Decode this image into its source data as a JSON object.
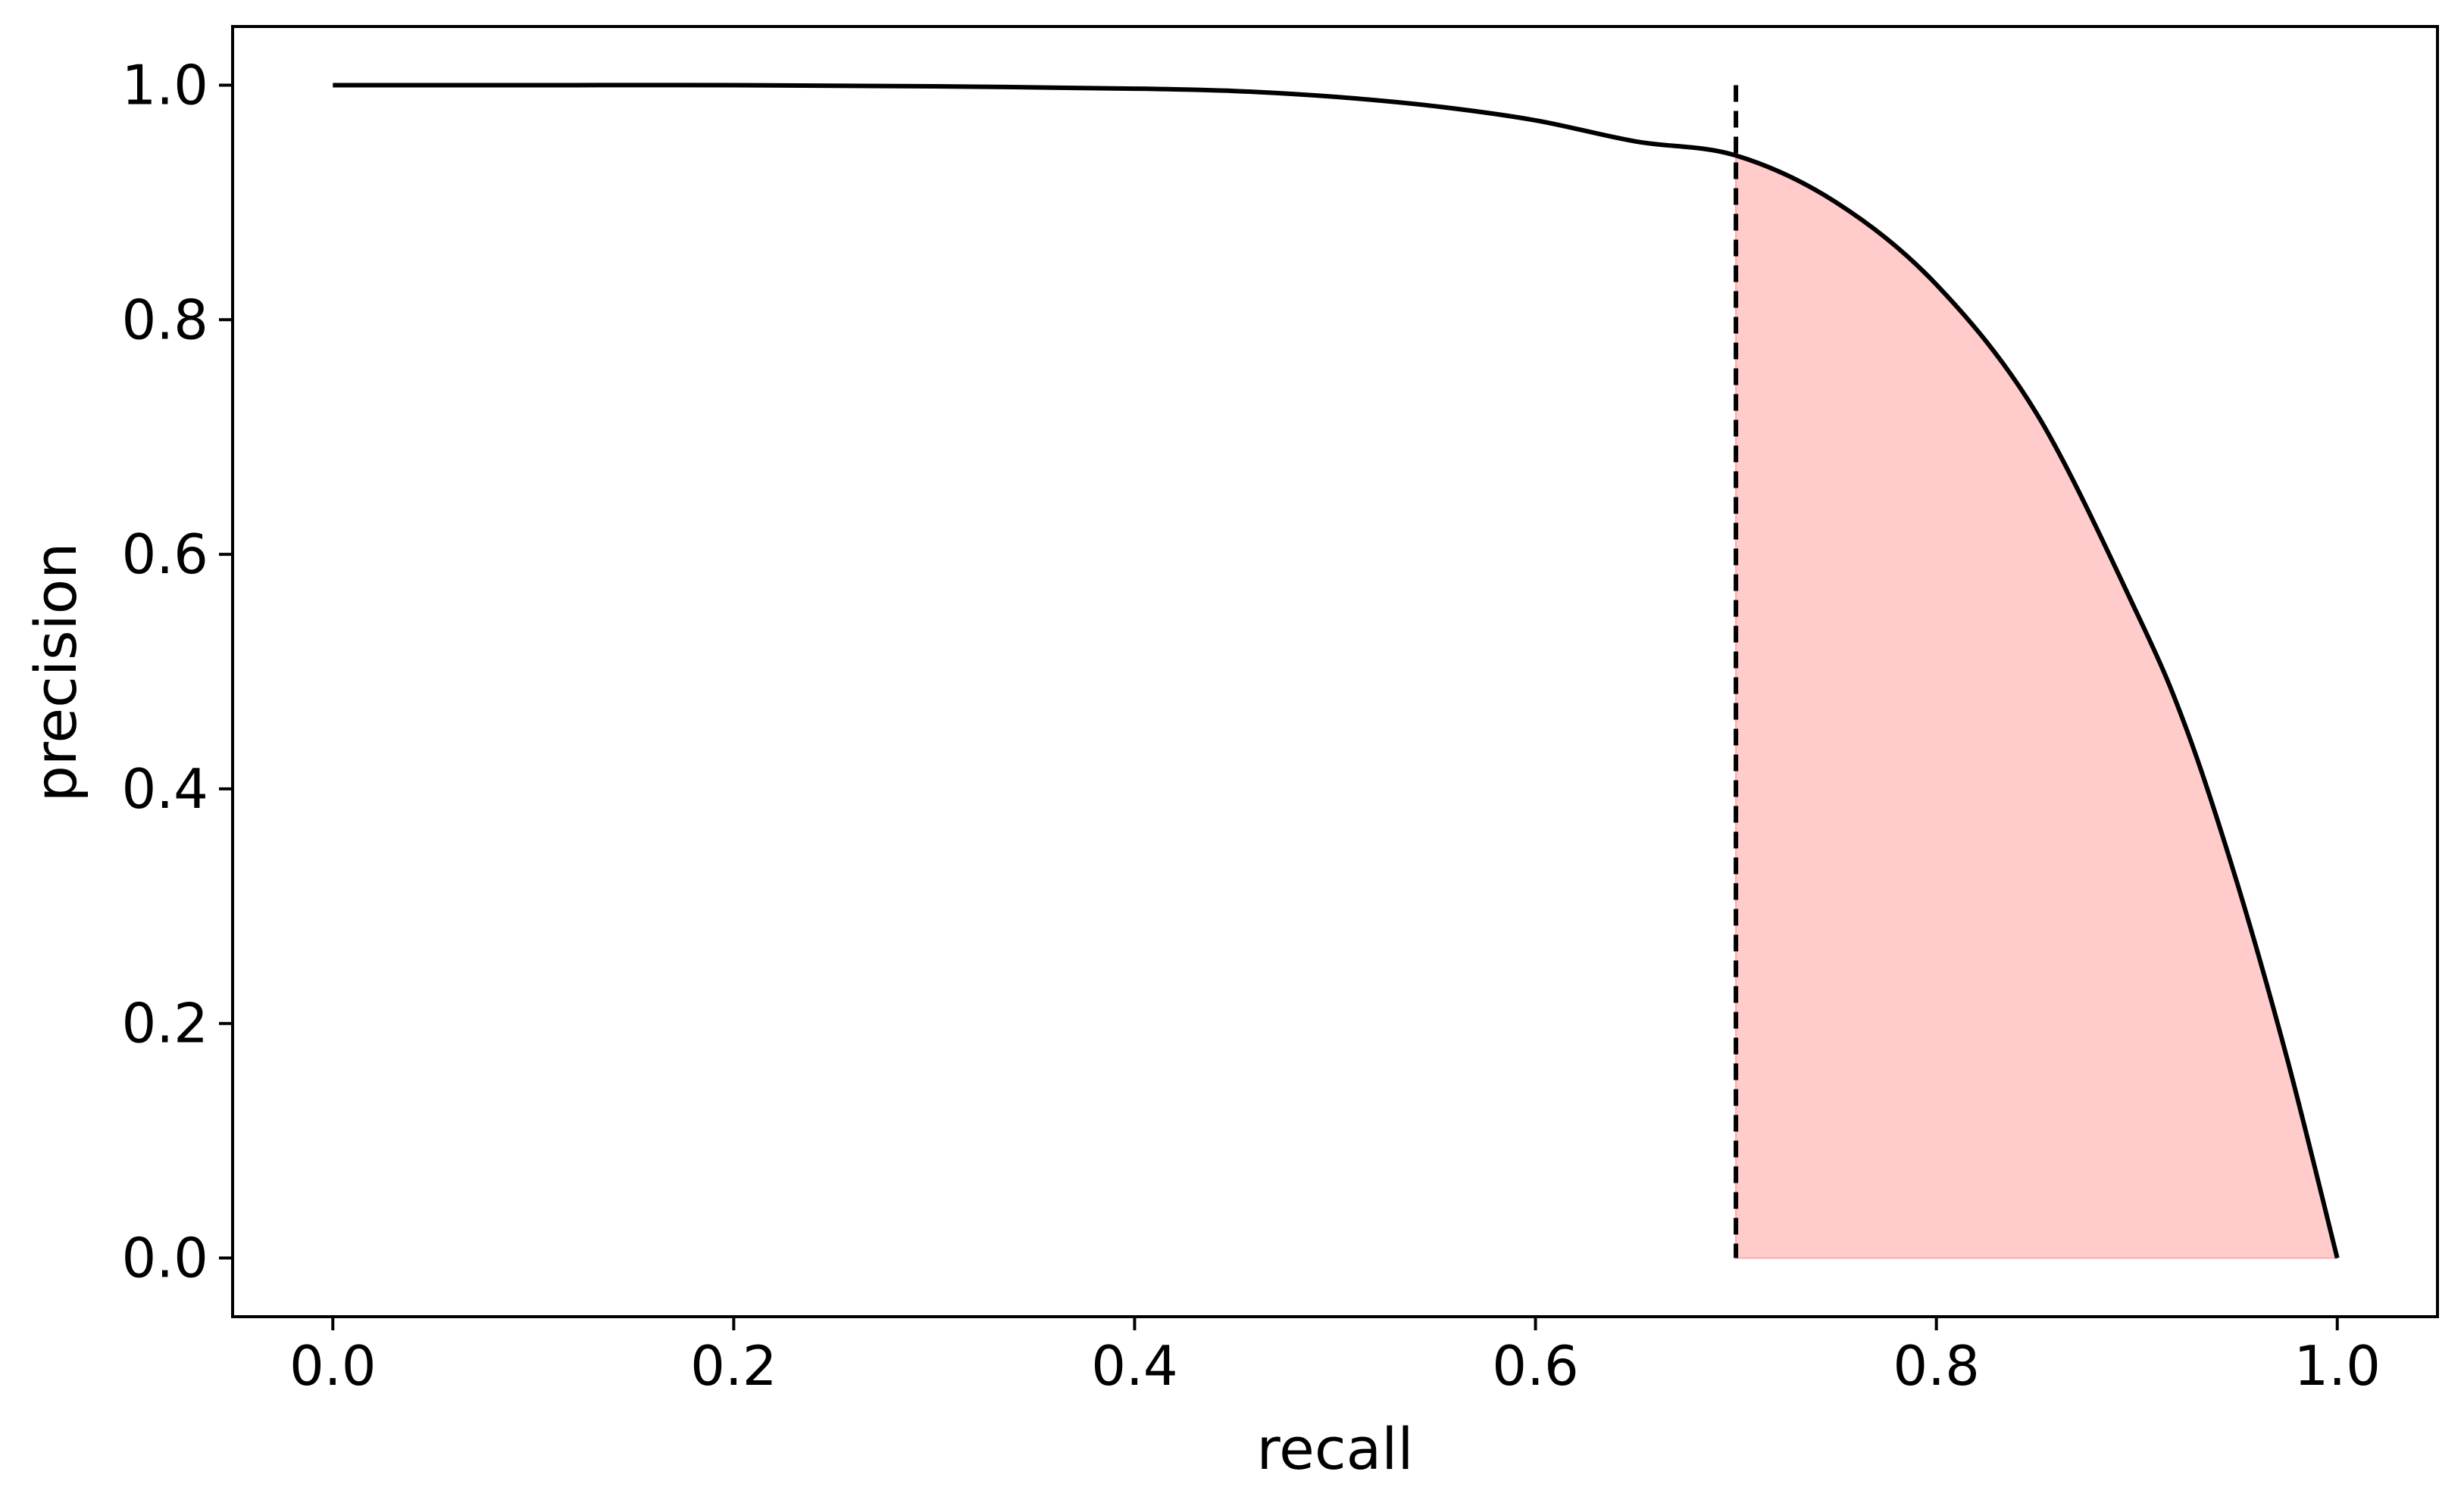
{
  "chart_data": {
    "type": "line",
    "title": "",
    "xlabel": "recall",
    "ylabel": "precision",
    "xlim": [
      -0.05,
      1.05
    ],
    "ylim": [
      -0.05,
      1.05
    ],
    "grid": false,
    "legend": "none",
    "xticks": [
      0.0,
      0.2,
      0.4,
      0.6,
      0.8,
      1.0
    ],
    "yticks": [
      0.0,
      0.2,
      0.4,
      0.6,
      0.8,
      1.0
    ],
    "xtick_labels": [
      "0.0",
      "0.2",
      "0.4",
      "0.6",
      "0.8",
      "1.0"
    ],
    "ytick_labels": [
      "0.0",
      "0.2",
      "0.4",
      "0.6",
      "0.8",
      "1.0"
    ],
    "series": [
      {
        "line_color": "#000000",
        "x": [
          0.0,
          0.1,
          0.2,
          0.3,
          0.4,
          0.45,
          0.5,
          0.55,
          0.6,
          0.65,
          0.7,
          0.75,
          0.8,
          0.85,
          0.9,
          0.925,
          0.95,
          0.975,
          1.0
        ],
        "y": [
          1.0,
          1.0,
          1.0,
          0.999,
          0.997,
          0.995,
          0.99,
          0.982,
          0.97,
          0.952,
          0.94,
          0.9,
          0.83,
          0.72,
          0.55,
          0.45,
          0.32,
          0.17,
          0.0
        ]
      }
    ],
    "threshold": {
      "x": 0.7,
      "style": "dashed",
      "color": "#000000"
    },
    "shaded_region": {
      "x_from": 0.7,
      "x_to": 1.0,
      "under_series": 0,
      "color": "#ffcccb"
    }
  }
}
